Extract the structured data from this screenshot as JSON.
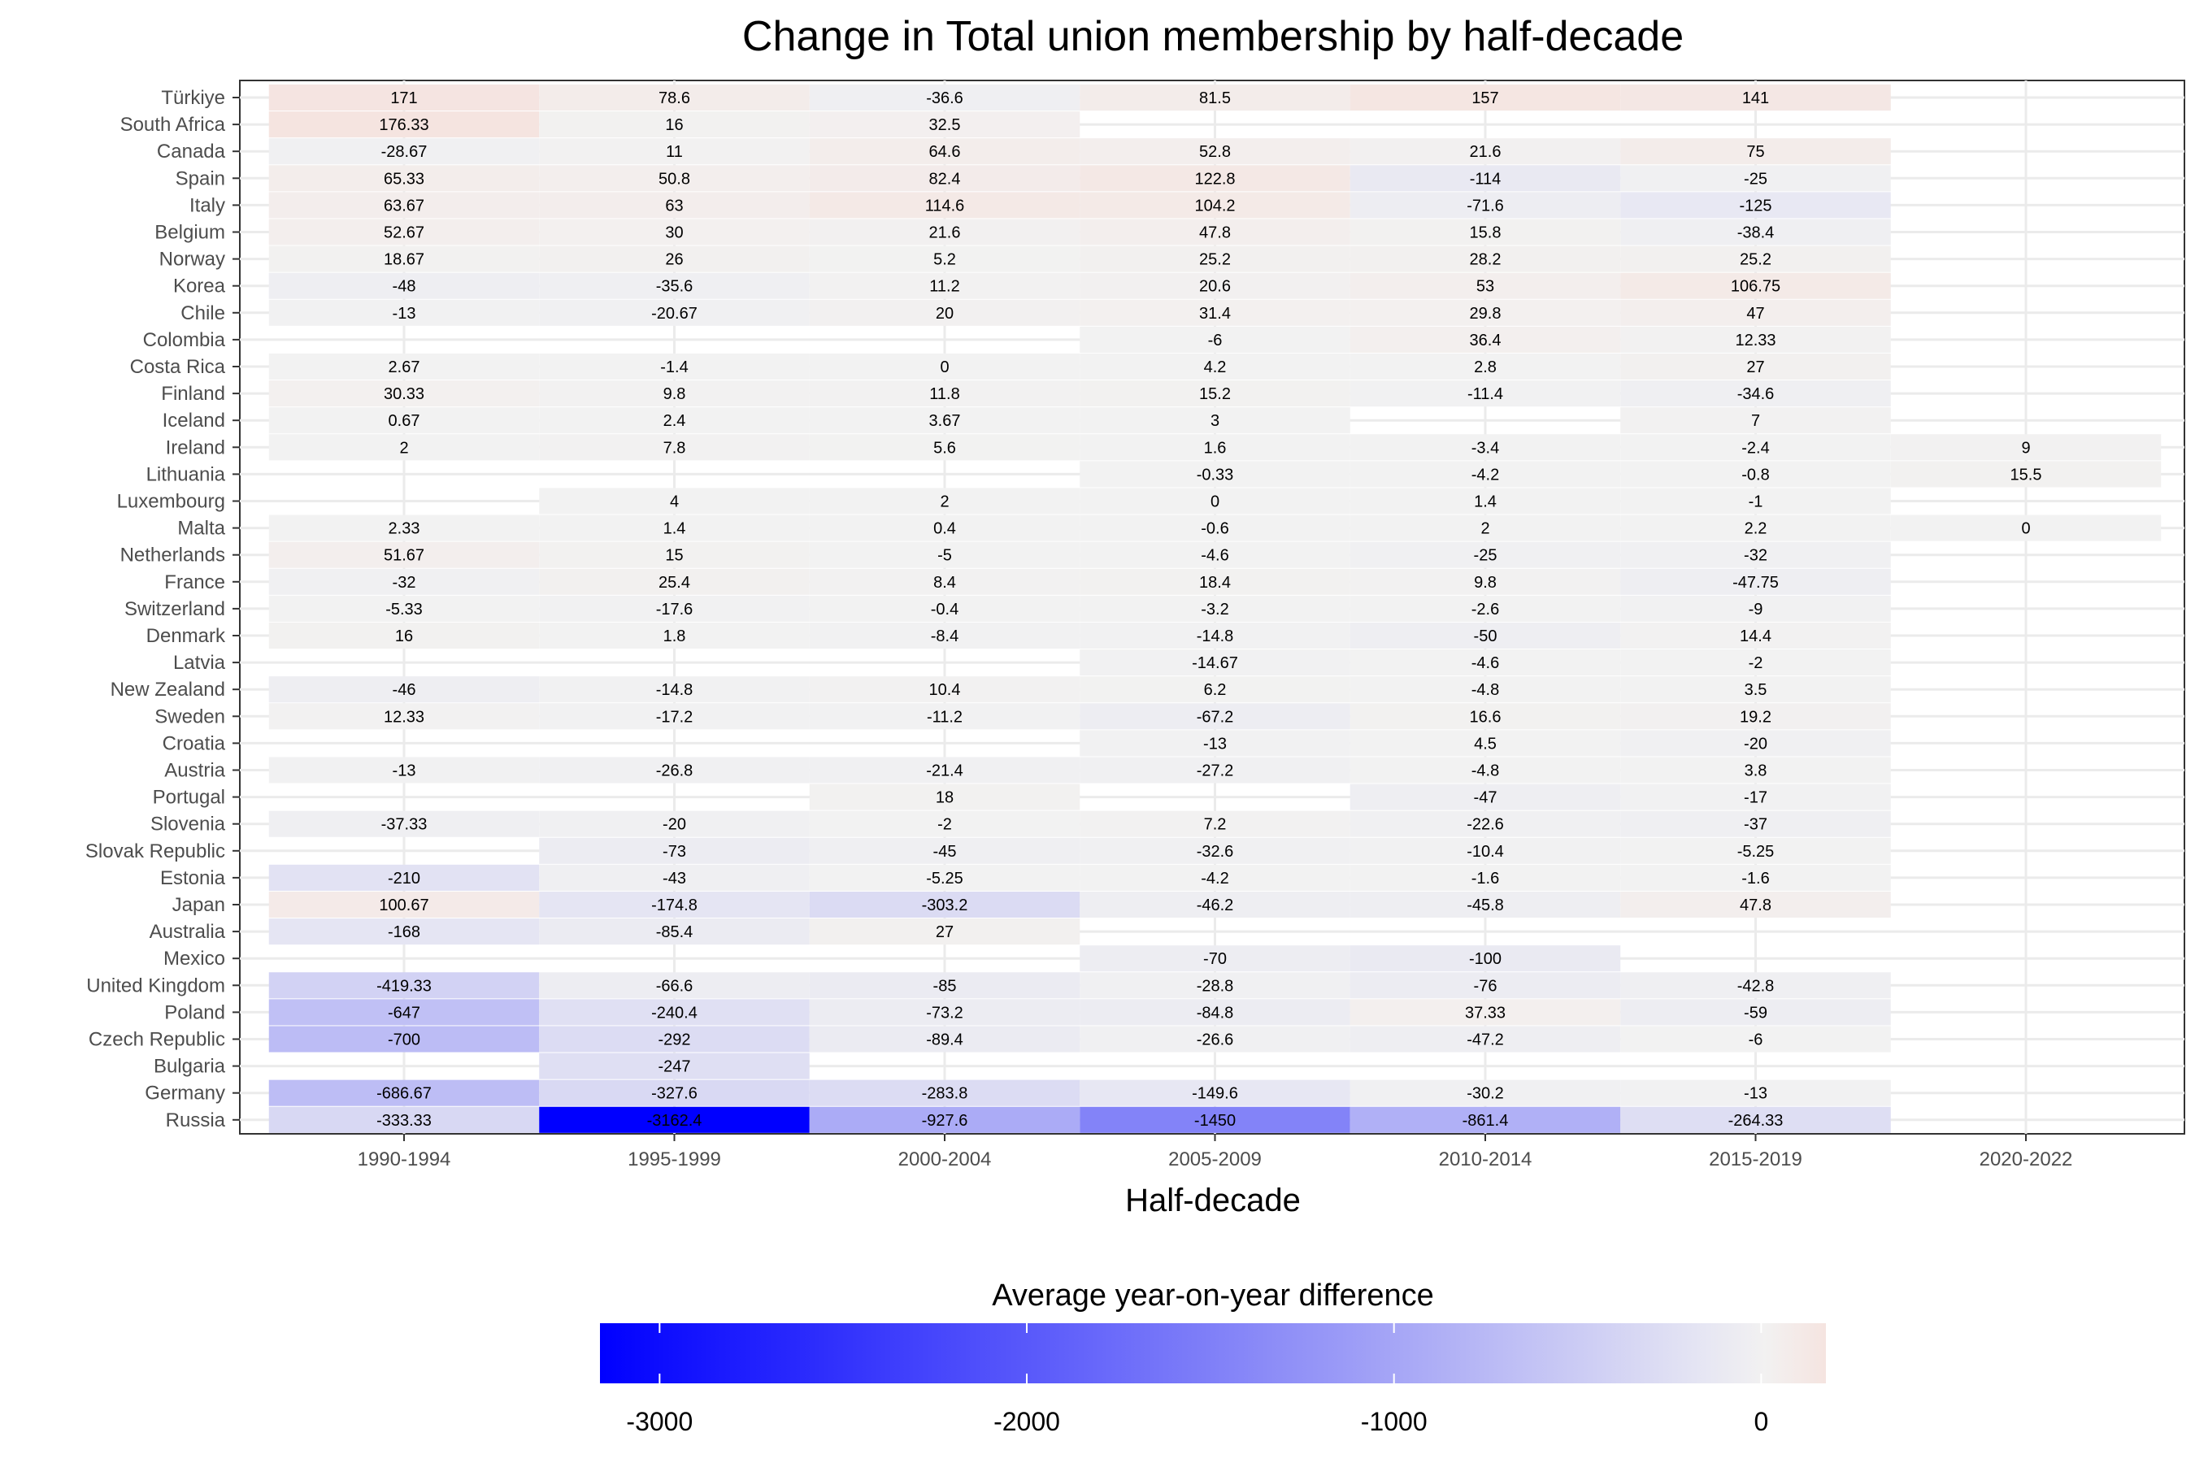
{
  "chart_data": {
    "type": "heatmap",
    "title": "Change in Total union membership by half-decade",
    "xlabel": "Half-decade",
    "ylabel": "",
    "categories": [
      "1990-1994",
      "1995-1999",
      "2000-2004",
      "2005-2009",
      "2010-2014",
      "2015-2019",
      "2020-2022"
    ],
    "rows": [
      {
        "name": "Türkiye",
        "values": [
          171,
          78.6,
          -36.6,
          81.5,
          157,
          141,
          null
        ]
      },
      {
        "name": "South Africa",
        "values": [
          176.33,
          16,
          32.5,
          null,
          null,
          null,
          null
        ]
      },
      {
        "name": "Canada",
        "values": [
          -28.67,
          11,
          64.6,
          52.8,
          21.6,
          75,
          null
        ]
      },
      {
        "name": "Spain",
        "values": [
          65.33,
          50.8,
          82.4,
          122.8,
          -114,
          -25,
          null
        ]
      },
      {
        "name": "Italy",
        "values": [
          63.67,
          63,
          114.6,
          104.2,
          -71.6,
          -125,
          null
        ]
      },
      {
        "name": "Belgium",
        "values": [
          52.67,
          30,
          21.6,
          47.8,
          15.8,
          -38.4,
          null
        ]
      },
      {
        "name": "Norway",
        "values": [
          18.67,
          26,
          5.2,
          25.2,
          28.2,
          25.2,
          null
        ]
      },
      {
        "name": "Korea",
        "values": [
          -48,
          -35.6,
          11.2,
          20.6,
          53,
          106.75,
          null
        ]
      },
      {
        "name": "Chile",
        "values": [
          -13,
          -20.67,
          20,
          31.4,
          29.8,
          47,
          null
        ]
      },
      {
        "name": "Colombia",
        "values": [
          null,
          null,
          null,
          -6,
          36.4,
          12.33,
          null
        ]
      },
      {
        "name": "Costa Rica",
        "values": [
          2.67,
          -1.4,
          0,
          4.2,
          2.8,
          27,
          null
        ]
      },
      {
        "name": "Finland",
        "values": [
          30.33,
          9.8,
          11.8,
          15.2,
          -11.4,
          -34.6,
          null
        ]
      },
      {
        "name": "Iceland",
        "values": [
          0.67,
          2.4,
          3.67,
          3,
          null,
          7,
          null
        ]
      },
      {
        "name": "Ireland",
        "values": [
          2,
          7.8,
          5.6,
          1.6,
          -3.4,
          -2.4,
          9
        ]
      },
      {
        "name": "Lithuania",
        "values": [
          null,
          null,
          null,
          -0.33,
          -4.2,
          -0.8,
          15.5
        ]
      },
      {
        "name": "Luxembourg",
        "values": [
          null,
          4,
          2,
          0,
          1.4,
          -1,
          null
        ]
      },
      {
        "name": "Malta",
        "values": [
          2.33,
          1.4,
          0.4,
          -0.6,
          2,
          2.2,
          0
        ]
      },
      {
        "name": "Netherlands",
        "values": [
          51.67,
          15,
          -5,
          -4.6,
          -25,
          -32,
          null
        ]
      },
      {
        "name": "France",
        "values": [
          -32,
          25.4,
          8.4,
          18.4,
          9.8,
          -47.75,
          null
        ]
      },
      {
        "name": "Switzerland",
        "values": [
          -5.33,
          -17.6,
          -0.4,
          -3.2,
          -2.6,
          -9,
          null
        ]
      },
      {
        "name": "Denmark",
        "values": [
          16,
          1.8,
          -8.4,
          -14.8,
          -50,
          14.4,
          null
        ]
      },
      {
        "name": "Latvia",
        "values": [
          null,
          null,
          null,
          -14.67,
          -4.6,
          -2,
          null
        ]
      },
      {
        "name": "New Zealand",
        "values": [
          -46,
          -14.8,
          10.4,
          6.2,
          -4.8,
          3.5,
          null
        ]
      },
      {
        "name": "Sweden",
        "values": [
          12.33,
          -17.2,
          -11.2,
          -67.2,
          16.6,
          19.2,
          null
        ]
      },
      {
        "name": "Croatia",
        "values": [
          null,
          null,
          null,
          -13,
          4.5,
          -20,
          null
        ]
      },
      {
        "name": "Austria",
        "values": [
          -13,
          -26.8,
          -21.4,
          -27.2,
          -4.8,
          3.8,
          null
        ]
      },
      {
        "name": "Portugal",
        "values": [
          null,
          null,
          18,
          null,
          -47,
          -17,
          null
        ]
      },
      {
        "name": "Slovenia",
        "values": [
          -37.33,
          -20,
          -2,
          7.2,
          -22.6,
          -37,
          null
        ]
      },
      {
        "name": "Slovak Republic",
        "values": [
          null,
          -73,
          -45,
          -32.6,
          -10.4,
          -5.25,
          null
        ]
      },
      {
        "name": "Estonia",
        "values": [
          -210,
          -43,
          -5.25,
          -4.2,
          -1.6,
          -1.6,
          null
        ]
      },
      {
        "name": "Japan",
        "values": [
          100.67,
          -174.8,
          -303.2,
          -46.2,
          -45.8,
          47.8,
          null
        ]
      },
      {
        "name": "Australia",
        "values": [
          -168,
          -85.4,
          27,
          null,
          null,
          null,
          null
        ]
      },
      {
        "name": "Mexico",
        "values": [
          null,
          null,
          null,
          -70,
          -100,
          null,
          null
        ]
      },
      {
        "name": "United Kingdom",
        "values": [
          -419.33,
          -66.6,
          -85,
          -28.8,
          -76,
          -42.8,
          null
        ]
      },
      {
        "name": "Poland",
        "values": [
          -647,
          -240.4,
          -73.2,
          -84.8,
          37.33,
          -59,
          null
        ]
      },
      {
        "name": "Czech Republic",
        "values": [
          -700,
          -292,
          -89.4,
          -26.6,
          -47.2,
          -6,
          null
        ]
      },
      {
        "name": "Bulgaria",
        "values": [
          null,
          -247,
          null,
          null,
          null,
          null,
          null
        ]
      },
      {
        "name": "Germany",
        "values": [
          -686.67,
          -327.6,
          -283.8,
          -149.6,
          -30.2,
          -13,
          null
        ]
      },
      {
        "name": "Russia",
        "values": [
          -333.33,
          -3162.4,
          -927.6,
          -1450,
          -861.4,
          -264.33,
          null
        ]
      }
    ],
    "legend": {
      "title": "Average year-on-year difference",
      "position": "bottom",
      "range": [
        -3162.4,
        176.33
      ],
      "ticks": [
        -3000,
        -2000,
        -1000,
        0
      ],
      "tick_labels": [
        "-3000",
        "-2000",
        "-1000",
        "0"
      ]
    },
    "colors": {
      "low": "#0000ff",
      "mid": "#f2f2f2",
      "high": "#f5e4e0"
    },
    "grid": true
  }
}
